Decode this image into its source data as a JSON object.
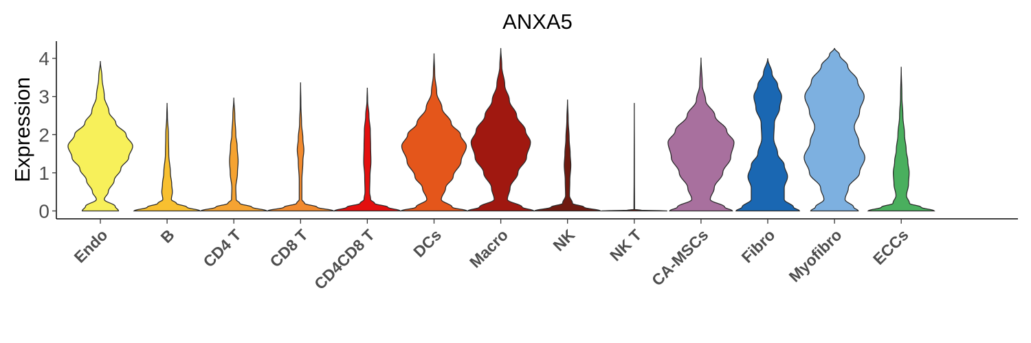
{
  "chart_data": {
    "type": "violin",
    "title": "ANXA5",
    "xlabel": "",
    "ylabel": "Expression",
    "ylim": [
      -0.2,
      4.5
    ],
    "yticks": [
      0,
      1,
      2,
      3,
      4
    ],
    "grid": false,
    "legend": "none",
    "categories": [
      "Endo",
      "B",
      "CD4 T",
      "CD8 T",
      "CD4CD8 T",
      "DCs",
      "Macro",
      "NK",
      "NK T",
      "CA-MSCs",
      "Fibro",
      "Myofibro",
      "ECCs"
    ],
    "series": [
      {
        "category": "Endo",
        "color": "#f7f05a",
        "max": 3.93,
        "profile": [
          [
            0,
            0.55
          ],
          [
            0.12,
            0.45
          ],
          [
            0.3,
            0.12
          ],
          [
            0.5,
            0.24
          ],
          [
            0.8,
            0.42
          ],
          [
            1.1,
            0.62
          ],
          [
            1.4,
            0.86
          ],
          [
            1.7,
            0.98
          ],
          [
            2.0,
            0.78
          ],
          [
            2.3,
            0.47
          ],
          [
            2.6,
            0.26
          ],
          [
            3.0,
            0.12
          ],
          [
            3.5,
            0.05
          ],
          [
            3.93,
            0
          ]
        ]
      },
      {
        "category": "B",
        "color": "#f8c030",
        "max": 2.83,
        "profile": [
          [
            0,
            1.0
          ],
          [
            0.1,
            0.6
          ],
          [
            0.2,
            0.28
          ],
          [
            0.3,
            0.13
          ],
          [
            0.5,
            0.16
          ],
          [
            0.7,
            0.14
          ],
          [
            1.0,
            0.1
          ],
          [
            1.5,
            0.05
          ],
          [
            2.0,
            0.04
          ],
          [
            2.5,
            0.01
          ],
          [
            2.83,
            0
          ]
        ]
      },
      {
        "category": "CD4 T",
        "color": "#f5a332",
        "max": 2.97,
        "profile": [
          [
            0,
            1.0
          ],
          [
            0.1,
            0.55
          ],
          [
            0.2,
            0.18
          ],
          [
            0.3,
            0.07
          ],
          [
            0.6,
            0.06
          ],
          [
            1.0,
            0.11
          ],
          [
            1.3,
            0.13
          ],
          [
            1.7,
            0.1
          ],
          [
            2.0,
            0.06
          ],
          [
            2.5,
            0.03
          ],
          [
            2.97,
            0
          ]
        ]
      },
      {
        "category": "CD8 T",
        "color": "#f28a2e",
        "max": 3.37,
        "profile": [
          [
            0,
            1.0
          ],
          [
            0.1,
            0.5
          ],
          [
            0.2,
            0.12
          ],
          [
            0.3,
            0.04
          ],
          [
            0.8,
            0.04
          ],
          [
            1.3,
            0.07
          ],
          [
            1.6,
            0.1
          ],
          [
            1.9,
            0.07
          ],
          [
            2.3,
            0.03
          ],
          [
            2.8,
            0.01
          ],
          [
            3.37,
            0
          ]
        ]
      },
      {
        "category": "CD4CD8 T",
        "color": "#e3100f",
        "max": 3.23,
        "profile": [
          [
            0,
            1.0
          ],
          [
            0.1,
            0.62
          ],
          [
            0.2,
            0.22
          ],
          [
            0.3,
            0.1
          ],
          [
            0.5,
            0.07
          ],
          [
            0.9,
            0.08
          ],
          [
            1.3,
            0.11
          ],
          [
            1.7,
            0.1
          ],
          [
            2.1,
            0.09
          ],
          [
            2.5,
            0.05
          ],
          [
            2.9,
            0.01
          ],
          [
            3.23,
            0
          ]
        ]
      },
      {
        "category": "DCs",
        "color": "#e4561b",
        "max": 4.13,
        "profile": [
          [
            0,
            1.0
          ],
          [
            0.1,
            0.55
          ],
          [
            0.3,
            0.22
          ],
          [
            0.6,
            0.35
          ],
          [
            0.9,
            0.58
          ],
          [
            1.3,
            0.82
          ],
          [
            1.7,
            0.98
          ],
          [
            2.0,
            0.8
          ],
          [
            2.3,
            0.52
          ],
          [
            2.7,
            0.24
          ],
          [
            3.1,
            0.08
          ],
          [
            3.6,
            0.02
          ],
          [
            4.13,
            0
          ]
        ]
      },
      {
        "category": "Macro",
        "color": "#a01810",
        "max": 4.27,
        "profile": [
          [
            0,
            1.0
          ],
          [
            0.1,
            0.65
          ],
          [
            0.3,
            0.2
          ],
          [
            0.6,
            0.28
          ],
          [
            1.0,
            0.52
          ],
          [
            1.4,
            0.78
          ],
          [
            1.8,
            0.9
          ],
          [
            2.1,
            0.75
          ],
          [
            2.5,
            0.48
          ],
          [
            2.9,
            0.26
          ],
          [
            3.3,
            0.12
          ],
          [
            3.8,
            0.03
          ],
          [
            4.27,
            0
          ]
        ]
      },
      {
        "category": "NK",
        "color": "#6f1a10",
        "max": 2.92,
        "profile": [
          [
            0,
            1.0
          ],
          [
            0.1,
            0.5
          ],
          [
            0.2,
            0.15
          ],
          [
            0.4,
            0.06
          ],
          [
            0.8,
            0.07
          ],
          [
            1.2,
            0.1
          ],
          [
            1.5,
            0.08
          ],
          [
            1.9,
            0.05
          ],
          [
            2.4,
            0.02
          ],
          [
            2.92,
            0
          ]
        ]
      },
      {
        "category": "NK T",
        "color": "#7a1f12",
        "max": 2.83,
        "profile": [
          [
            0,
            1.0
          ],
          [
            0.02,
            0.2
          ],
          [
            0.04,
            0.01
          ],
          [
            1.0,
            0.005
          ],
          [
            2.83,
            0
          ]
        ]
      },
      {
        "category": "CA-MSCs",
        "color": "#a8709e",
        "max": 4.02,
        "profile": [
          [
            0,
            0.95
          ],
          [
            0.1,
            0.72
          ],
          [
            0.3,
            0.28
          ],
          [
            0.6,
            0.4
          ],
          [
            1.0,
            0.66
          ],
          [
            1.4,
            0.9
          ],
          [
            1.8,
            1.0
          ],
          [
            2.1,
            0.78
          ],
          [
            2.5,
            0.42
          ],
          [
            2.9,
            0.14
          ],
          [
            3.3,
            0.04
          ],
          [
            4.02,
            0
          ]
        ]
      },
      {
        "category": "Fibro",
        "color": "#1a67b2",
        "max": 4.0,
        "profile": [
          [
            0,
            0.96
          ],
          [
            0.1,
            0.78
          ],
          [
            0.3,
            0.5
          ],
          [
            0.6,
            0.5
          ],
          [
            0.9,
            0.6
          ],
          [
            1.2,
            0.5
          ],
          [
            1.5,
            0.3
          ],
          [
            1.9,
            0.18
          ],
          [
            2.3,
            0.2
          ],
          [
            2.7,
            0.36
          ],
          [
            3.0,
            0.42
          ],
          [
            3.3,
            0.3
          ],
          [
            3.6,
            0.13
          ],
          [
            4.0,
            0
          ]
        ]
      },
      {
        "category": "Myofibro",
        "color": "#7db0e0",
        "max": 4.27,
        "profile": [
          [
            0,
            0.72
          ],
          [
            0.1,
            0.58
          ],
          [
            0.3,
            0.32
          ],
          [
            0.6,
            0.42
          ],
          [
            1.0,
            0.76
          ],
          [
            1.4,
            0.92
          ],
          [
            1.8,
            0.74
          ],
          [
            2.2,
            0.6
          ],
          [
            2.6,
            0.76
          ],
          [
            3.0,
            0.9
          ],
          [
            3.4,
            0.7
          ],
          [
            3.8,
            0.4
          ],
          [
            4.1,
            0.15
          ],
          [
            4.27,
            0
          ]
        ]
      },
      {
        "category": "ECCs",
        "color": "#4aaf5e",
        "max": 3.78,
        "profile": [
          [
            0,
            1.0
          ],
          [
            0.1,
            0.6
          ],
          [
            0.2,
            0.25
          ],
          [
            0.4,
            0.16
          ],
          [
            0.7,
            0.22
          ],
          [
            1.0,
            0.24
          ],
          [
            1.3,
            0.2
          ],
          [
            1.6,
            0.15
          ],
          [
            2.0,
            0.1
          ],
          [
            2.5,
            0.05
          ],
          [
            3.0,
            0.02
          ],
          [
            3.78,
            0
          ]
        ]
      }
    ]
  }
}
